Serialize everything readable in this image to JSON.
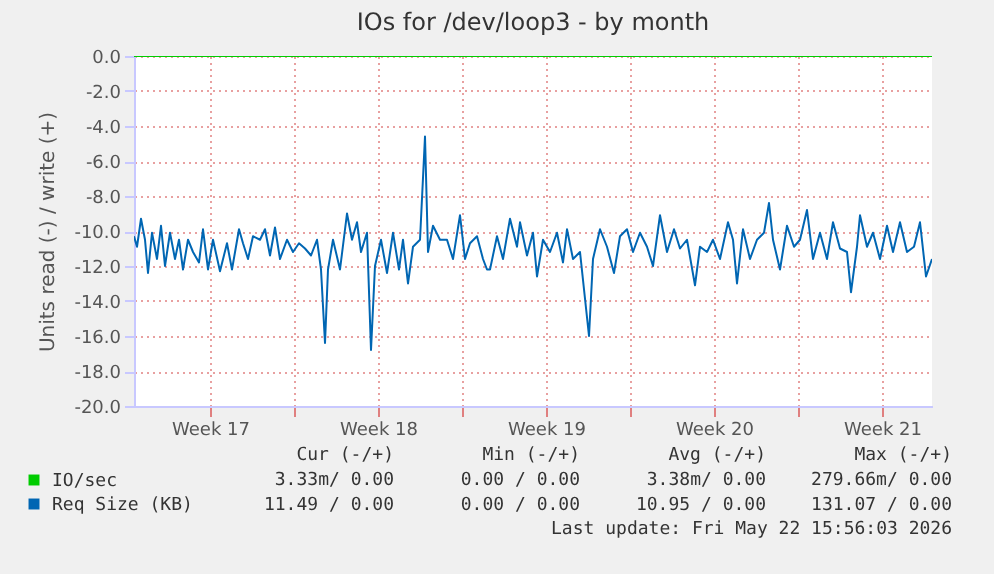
{
  "chart_data": {
    "type": "line",
    "title": "IOs for /dev/loop3 - by month",
    "ylabel": "Units read (-) / write (+)",
    "xlim": [
      "2026-04-20T08:00",
      "2026-05-23T14:00"
    ],
    "xticks": [
      {
        "value": "2026-04-23T12:00",
        "label": "Week 17"
      },
      {
        "value": "2026-04-27T00:00",
        "label": null
      },
      {
        "value": "2026-04-30T12:00",
        "label": "Week 18"
      },
      {
        "value": "2026-05-04T00:00",
        "label": null
      },
      {
        "value": "2026-05-07T12:00",
        "label": "Week 19"
      },
      {
        "value": "2026-05-11T00:00",
        "label": null
      },
      {
        "value": "2026-05-14T12:00",
        "label": "Week 20"
      },
      {
        "value": "2026-05-18T00:00",
        "label": null
      },
      {
        "value": "2026-05-21T12:00",
        "label": "Week 21"
      }
    ],
    "ylim": [
      -20,
      0
    ],
    "yticks": [
      {
        "value": -20,
        "label": "-20.0"
      },
      {
        "value": -18,
        "label": "-18.0"
      },
      {
        "value": -16,
        "label": "-16.0"
      },
      {
        "value": -14,
        "label": "-14.0"
      },
      {
        "value": -12,
        "label": "-12.0"
      },
      {
        "value": -10,
        "label": "-10.0"
      },
      {
        "value": -8,
        "label": "-8.0"
      },
      {
        "value": -6,
        "label": "-6.0"
      },
      {
        "value": -4,
        "label": "-4.0"
      },
      {
        "value": -2,
        "label": "-2.0"
      },
      {
        "value": 0,
        "label": "0.0"
      }
    ],
    "grid": true,
    "legend": "bottom left",
    "marker": "none",
    "series": [
      {
        "name": "IO/sec",
        "color": "#00cc00",
        "x": [
          "2026-04-20T08:00",
          "2026-05-23T14:00"
        ],
        "values": [
          0,
          0
        ]
      },
      {
        "name": "Req Size (KB)",
        "color": "#0066b3",
        "x": [
          "2026-04-20T08:00",
          "2026-04-20T11:00",
          "2026-04-20T15:00",
          "2026-04-20T19:00",
          "2026-04-20T22:00",
          "2026-04-21T02:00",
          "2026-04-21T07:00",
          "2026-04-21T11:00",
          "2026-04-21T15:00",
          "2026-04-21T20:00",
          "2026-04-22T01:00",
          "2026-04-22T05:00",
          "2026-04-22T09:00",
          "2026-04-22T14:00",
          "2026-04-22T19:00",
          "2026-04-23T01:00",
          "2026-04-23T05:00",
          "2026-04-23T10:00",
          "2026-04-23T15:00",
          "2026-04-23T22:00",
          "2026-04-24T05:00",
          "2026-04-24T10:00",
          "2026-04-24T17:00",
          "2026-04-24T21:00",
          "2026-04-25T02:00",
          "2026-04-25T07:00",
          "2026-04-25T14:00",
          "2026-04-25T19:00",
          "2026-04-26T00:00",
          "2026-04-26T05:00",
          "2026-04-26T10:00",
          "2026-04-26T17:00",
          "2026-04-26T23:00",
          "2026-04-27T05:00",
          "2026-04-27T11:00",
          "2026-04-27T17:00",
          "2026-04-27T23:00",
          "2026-04-28T03:00",
          "2026-04-28T07:00",
          "2026-04-28T10:00",
          "2026-04-28T15:00",
          "2026-04-28T22:00",
          "2026-04-29T05:00",
          "2026-04-29T10:00",
          "2026-04-29T15:00",
          "2026-04-29T19:00",
          "2026-04-30T01:00",
          "2026-04-30T05:00",
          "2026-04-30T09:00",
          "2026-04-30T15:00",
          "2026-04-30T21:00",
          "2026-05-01T03:00",
          "2026-05-01T09:00",
          "2026-05-01T13:00",
          "2026-05-01T18:00",
          "2026-05-01T23:00",
          "2026-05-02T06:00",
          "2026-05-02T11:00",
          "2026-05-02T14:00",
          "2026-05-02T19:00",
          "2026-05-03T02:00",
          "2026-05-03T09:00",
          "2026-05-03T15:00",
          "2026-05-03T22:00",
          "2026-05-04T03:00",
          "2026-05-04T08:00",
          "2026-05-04T15:00",
          "2026-05-04T21:00",
          "2026-05-05T01:00",
          "2026-05-05T04:00",
          "2026-05-05T11:00",
          "2026-05-05T17:00",
          "2026-05-06T00:00",
          "2026-05-06T07:00",
          "2026-05-06T10:00",
          "2026-05-06T17:00",
          "2026-05-06T23:00",
          "2026-05-07T03:00",
          "2026-05-07T09:00",
          "2026-05-07T16:00",
          "2026-05-07T23:00",
          "2026-05-08T05:00",
          "2026-05-08T09:00",
          "2026-05-08T15:00",
          "2026-05-08T22:00",
          "2026-05-09T07:00",
          "2026-05-09T11:00",
          "2026-05-09T18:00",
          "2026-05-10T01:00",
          "2026-05-10T08:00",
          "2026-05-10T14:00",
          "2026-05-10T21:00",
          "2026-05-11T03:00",
          "2026-05-11T10:00",
          "2026-05-11T17:00",
          "2026-05-11T23:00",
          "2026-05-12T06:00",
          "2026-05-12T13:00",
          "2026-05-12T20:00",
          "2026-05-13T02:00",
          "2026-05-13T09:00",
          "2026-05-13T17:00",
          "2026-05-13T22:00",
          "2026-05-14T05:00",
          "2026-05-14T11:00",
          "2026-05-14T18:00",
          "2026-05-15T02:00",
          "2026-05-15T07:00",
          "2026-05-15T11:00",
          "2026-05-15T17:00",
          "2026-05-16T00:00",
          "2026-05-16T07:00",
          "2026-05-16T14:00",
          "2026-05-16T19:00",
          "2026-05-16T23:00",
          "2026-05-17T06:00",
          "2026-05-17T13:00",
          "2026-05-17T20:00",
          "2026-05-18T02:00",
          "2026-05-18T09:00",
          "2026-05-18T15:00",
          "2026-05-18T22:00",
          "2026-05-19T05:00",
          "2026-05-19T11:00",
          "2026-05-19T18:00",
          "2026-05-20T01:00",
          "2026-05-20T05:00",
          "2026-05-20T11:00",
          "2026-05-20T14:00",
          "2026-05-20T21:00",
          "2026-05-21T03:00",
          "2026-05-21T10:00",
          "2026-05-21T17:00",
          "2026-05-21T23:00",
          "2026-05-22T06:00",
          "2026-05-22T13:00",
          "2026-05-22T20:00",
          "2026-05-23T02:00",
          "2026-05-23T08:00",
          "2026-05-23T14:00"
        ],
        "values": [
          -10.3,
          -10.9,
          -9.3,
          -10.5,
          -12.4,
          -10.1,
          -11.6,
          -9.7,
          -12.0,
          -10.1,
          -11.6,
          -10.5,
          -12.2,
          -10.5,
          -11.2,
          -11.8,
          -9.9,
          -12.2,
          -10.5,
          -12.3,
          -10.7,
          -12.2,
          -9.9,
          -10.7,
          -11.6,
          -10.3,
          -10.5,
          -9.9,
          -11.4,
          -9.8,
          -11.6,
          -10.5,
          -11.2,
          -10.7,
          -11.0,
          -11.4,
          -10.5,
          -12.2,
          -16.4,
          -12.2,
          -10.5,
          -12.2,
          -9.0,
          -10.5,
          -9.5,
          -11.2,
          -10.1,
          -16.8,
          -12.0,
          -10.5,
          -12.4,
          -10.1,
          -12.2,
          -10.5,
          -13.0,
          -10.9,
          -10.5,
          -4.6,
          -11.2,
          -9.7,
          -10.5,
          -10.5,
          -11.6,
          -9.1,
          -11.6,
          -10.7,
          -10.3,
          -11.6,
          -12.2,
          -12.2,
          -10.3,
          -11.6,
          -9.3,
          -10.9,
          -9.5,
          -11.4,
          -10.1,
          -12.6,
          -10.5,
          -11.2,
          -10.1,
          -11.8,
          -9.9,
          -11.6,
          -11.2,
          -16.0,
          -11.6,
          -9.9,
          -10.9,
          -12.4,
          -10.3,
          -9.9,
          -11.2,
          -10.1,
          -10.9,
          -12.0,
          -9.1,
          -11.2,
          -9.9,
          -11.0,
          -10.5,
          -13.1,
          -10.9,
          -11.2,
          -10.5,
          -11.6,
          -9.5,
          -10.5,
          -13.0,
          -9.9,
          -11.6,
          -10.5,
          -10.1,
          -8.4,
          -10.5,
          -12.2,
          -9.7,
          -10.9,
          -10.5,
          -8.8,
          -11.6,
          -10.1,
          -11.6,
          -9.5,
          -11.0,
          -11.2,
          -13.5,
          -10.9,
          -9.1,
          -10.9,
          -10.1,
          -11.6,
          -9.7,
          -11.2,
          -9.5,
          -11.2,
          -10.9,
          -9.5,
          -12.6,
          -11.6
        ]
      }
    ],
    "annotations": [
      "Cur (-/+)",
      "Min (-/+)",
      "Avg (-/+)",
      "Max (-/+)",
      "3.33m/ 0.00",
      "0.00 / 0.00",
      "3.38m/ 0.00",
      "279.66m/ 0.00",
      "11.49 / 0.00",
      "0.00 / 0.00",
      "10.95 / 0.00",
      "131.07 / 0.00",
      "Last update: Fri May 22 15:56:03 2026"
    ]
  }
}
